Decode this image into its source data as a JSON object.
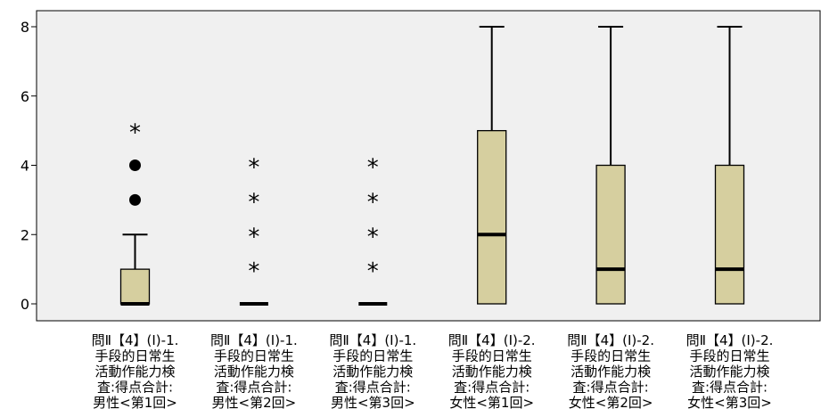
{
  "chart_data": {
    "type": "boxplot",
    "ylim": [
      0,
      8
    ],
    "yticks": [
      0,
      2,
      4,
      6,
      8
    ],
    "grid": false,
    "box_color": "#d6cf9f",
    "plot_background": "#f0f0f0",
    "categories": [
      {
        "label_lines": [
          "問Ⅱ【4】(I)-1.",
          "手段的日常生",
          "活動作能力検",
          "査:得点合計:",
          "男性<第1回>"
        ],
        "min": 0,
        "q1": 0,
        "median": 0,
        "q3": 1,
        "max": 2,
        "outliers": [
          3,
          4
        ],
        "extremes": [
          5
        ]
      },
      {
        "label_lines": [
          "問Ⅱ【4】(I)-1.",
          "手段的日常生",
          "活動作能力検",
          "査:得点合計:",
          "男性<第2回>"
        ],
        "min": 0,
        "q1": 0,
        "median": 0,
        "q3": 0,
        "max": 0,
        "outliers": [],
        "extremes": [
          1,
          2,
          3,
          4
        ]
      },
      {
        "label_lines": [
          "問Ⅱ【4】(I)-1.",
          "手段的日常生",
          "活動作能力検",
          "査:得点合計:",
          "男性<第3回>"
        ],
        "min": 0,
        "q1": 0,
        "median": 0,
        "q3": 0,
        "max": 0,
        "outliers": [],
        "extremes": [
          1,
          2,
          3,
          4
        ]
      },
      {
        "label_lines": [
          "問Ⅱ【4】(I)-2.",
          "手段的日常生",
          "活動作能力検",
          "査:得点合計:",
          "女性<第1回>"
        ],
        "min": 0,
        "q1": 0,
        "median": 2,
        "q3": 5,
        "max": 8,
        "outliers": [],
        "extremes": []
      },
      {
        "label_lines": [
          "問Ⅱ【4】(I)-2.",
          "手段的日常生",
          "活動作能力検",
          "査:得点合計:",
          "女性<第2回>"
        ],
        "min": 0,
        "q1": 0,
        "median": 1,
        "q3": 4,
        "max": 8,
        "outliers": [],
        "extremes": []
      },
      {
        "label_lines": [
          "問Ⅱ【4】(I)-2.",
          "手段的日常生",
          "活動作能力検",
          "査:得点合計:",
          "女性<第3回>"
        ],
        "min": 0,
        "q1": 0,
        "median": 1,
        "q3": 4,
        "max": 8,
        "outliers": [],
        "extremes": []
      }
    ]
  }
}
